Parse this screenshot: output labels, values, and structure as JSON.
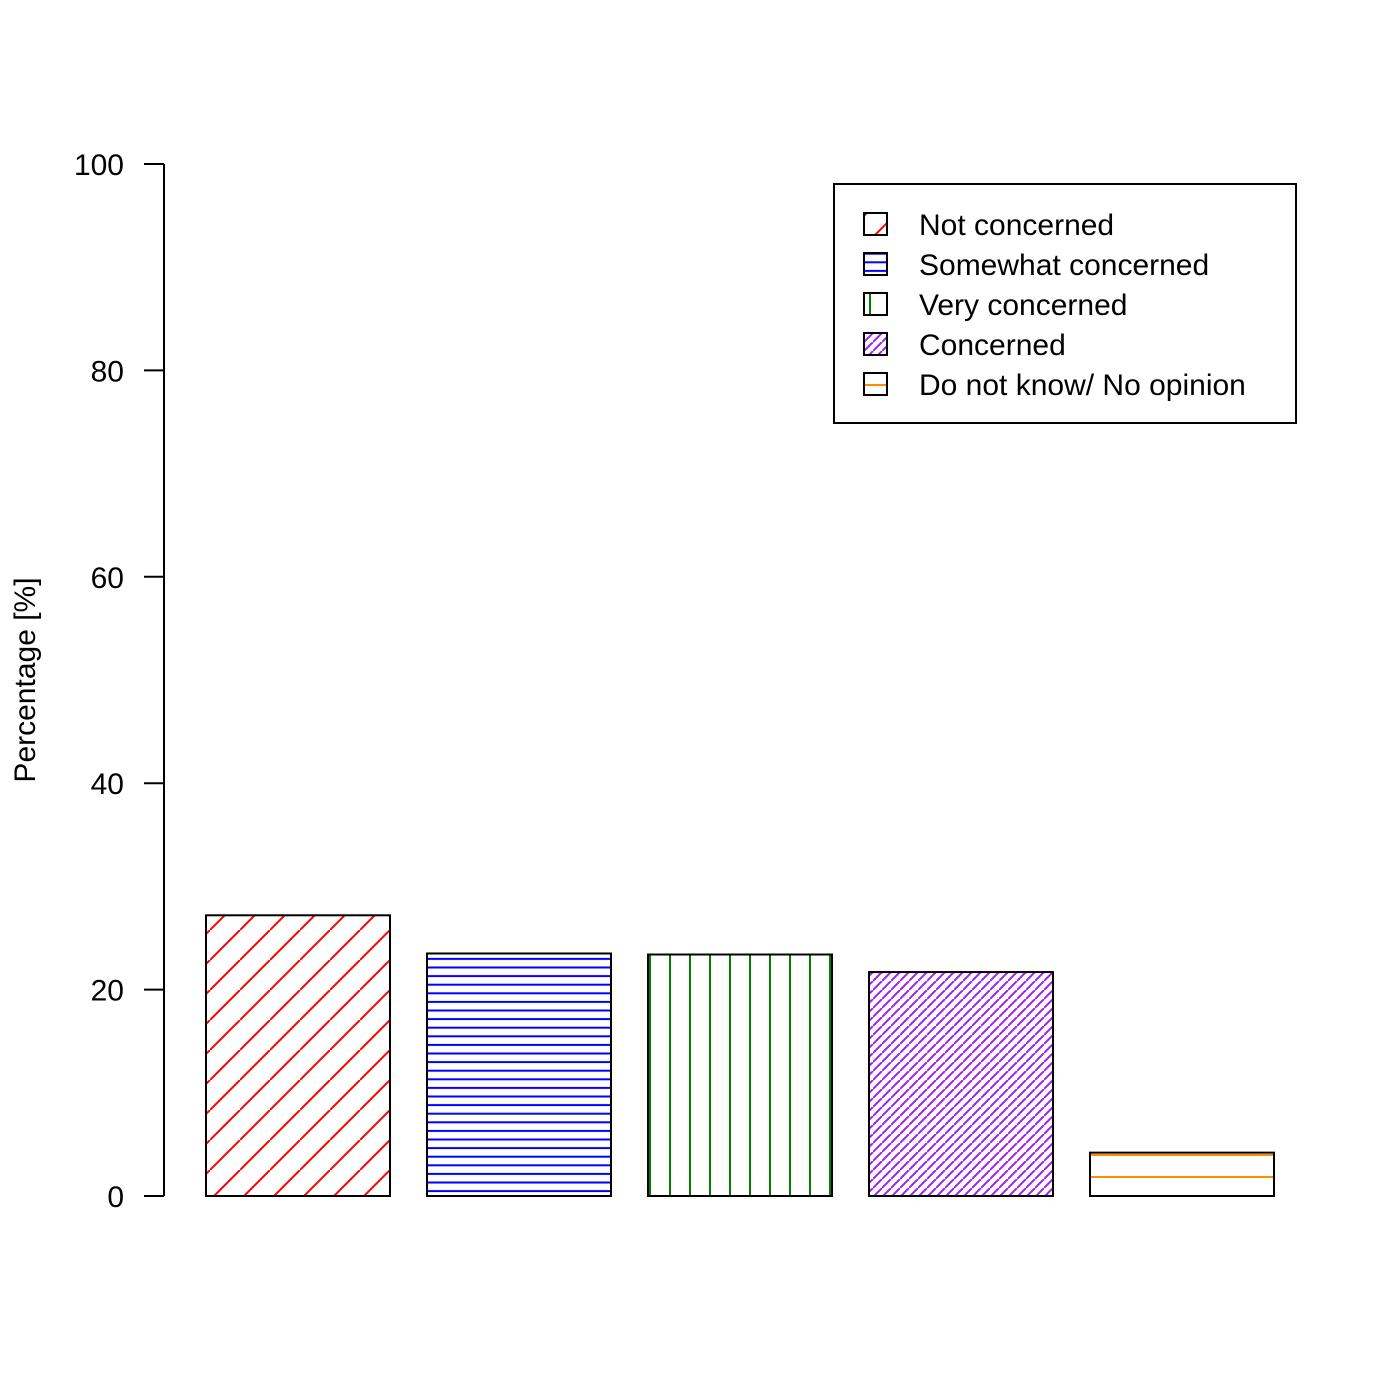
{
  "chart_data": {
    "type": "bar",
    "title": "",
    "xlabel": "",
    "ylabel": "Percentage [%]",
    "ylim": [
      0,
      100
    ],
    "yticks": [
      0,
      20,
      40,
      60,
      80,
      100
    ],
    "categories": [
      "Not concerned",
      "Somewhat concerned",
      "Very concerned",
      "Concerned",
      "Do not know/ No opinion"
    ],
    "values": [
      27.2,
      23.5,
      23.4,
      21.7,
      4.2
    ],
    "colors": [
      "#ff0000",
      "#0000ff",
      "#008000",
      "#a020f0",
      "#ff8c00"
    ],
    "hatch": [
      "diagonal-sparse",
      "horizontal-dense",
      "vertical",
      "diagonal-dense",
      "horizontal-sparse"
    ],
    "grid": false,
    "legend": {
      "position": "top-right",
      "entries": [
        "Not concerned",
        "Somewhat concerned",
        "Very concerned",
        "Concerned",
        "Do not know/ No opinion"
      ]
    }
  }
}
